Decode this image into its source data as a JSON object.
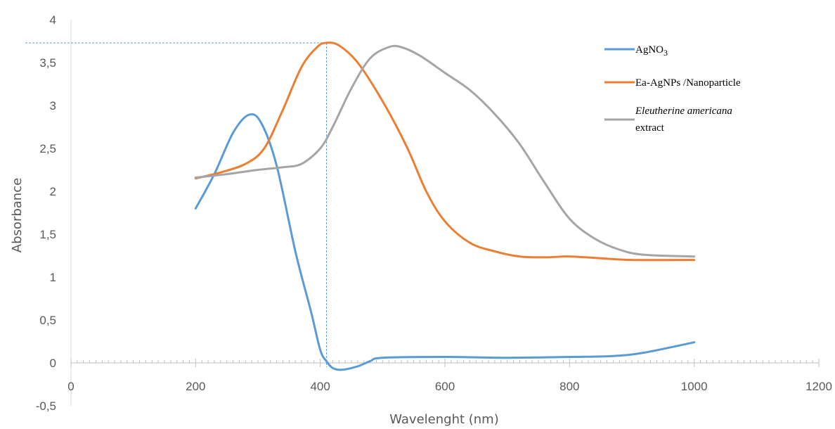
{
  "chart_data": {
    "type": "line",
    "xlabel": "Wavelenght (nm)",
    "ylabel": "Absorbance",
    "xlim": [
      0,
      1200
    ],
    "ylim": [
      -0.5,
      4
    ],
    "x_ticks": [
      "0",
      "200",
      "400",
      "600",
      "800",
      "1000",
      "1200"
    ],
    "y_ticks": [
      "-0,5",
      "0",
      "0,5",
      "1",
      "1,5",
      "2",
      "2,5",
      "3",
      "3,5",
      "4"
    ],
    "grid": false,
    "legend_position": "top-right",
    "reference_lines": [
      {
        "x": 410,
        "y": 3.73,
        "style": "dashed",
        "color": "#5b9bd5"
      }
    ],
    "series": [
      {
        "name_parts": [
          "AgNO",
          "3"
        ],
        "color": "#5b9bd5",
        "points": [
          [
            200,
            1.8
          ],
          [
            230,
            2.2
          ],
          [
            260,
            2.68
          ],
          [
            285,
            2.89
          ],
          [
            305,
            2.8
          ],
          [
            330,
            2.3
          ],
          [
            360,
            1.3
          ],
          [
            385,
            0.6
          ],
          [
            400,
            0.15
          ],
          [
            410,
            0.02
          ],
          [
            420,
            -0.06
          ],
          [
            435,
            -0.08
          ],
          [
            460,
            -0.04
          ],
          [
            480,
            0.02
          ],
          [
            500,
            0.06
          ],
          [
            600,
            0.07
          ],
          [
            700,
            0.06
          ],
          [
            800,
            0.07
          ],
          [
            870,
            0.08
          ],
          [
            920,
            0.12
          ],
          [
            1000,
            0.24
          ]
        ]
      },
      {
        "name": "Ea-AgNPs  /Nanoparticle",
        "color": "#ed7d31",
        "points": [
          [
            200,
            2.15
          ],
          [
            240,
            2.22
          ],
          [
            280,
            2.32
          ],
          [
            310,
            2.5
          ],
          [
            340,
            2.95
          ],
          [
            370,
            3.45
          ],
          [
            395,
            3.68
          ],
          [
            410,
            3.73
          ],
          [
            430,
            3.7
          ],
          [
            460,
            3.5
          ],
          [
            500,
            3.05
          ],
          [
            540,
            2.5
          ],
          [
            570,
            2.0
          ],
          [
            600,
            1.65
          ],
          [
            640,
            1.4
          ],
          [
            680,
            1.3
          ],
          [
            720,
            1.24
          ],
          [
            760,
            1.23
          ],
          [
            800,
            1.24
          ],
          [
            850,
            1.22
          ],
          [
            900,
            1.2
          ],
          [
            1000,
            1.2
          ]
        ]
      },
      {
        "name_italic": "Eleutherine americana",
        "name_suffix": "extract",
        "color": "#a5a5a5",
        "points": [
          [
            200,
            2.16
          ],
          [
            250,
            2.2
          ],
          [
            300,
            2.25
          ],
          [
            340,
            2.28
          ],
          [
            370,
            2.32
          ],
          [
            400,
            2.5
          ],
          [
            420,
            2.75
          ],
          [
            450,
            3.2
          ],
          [
            480,
            3.55
          ],
          [
            510,
            3.68
          ],
          [
            530,
            3.68
          ],
          [
            560,
            3.58
          ],
          [
            600,
            3.38
          ],
          [
            640,
            3.18
          ],
          [
            680,
            2.9
          ],
          [
            720,
            2.55
          ],
          [
            760,
            2.1
          ],
          [
            800,
            1.68
          ],
          [
            840,
            1.45
          ],
          [
            880,
            1.32
          ],
          [
            920,
            1.26
          ],
          [
            1000,
            1.24
          ]
        ]
      }
    ]
  }
}
